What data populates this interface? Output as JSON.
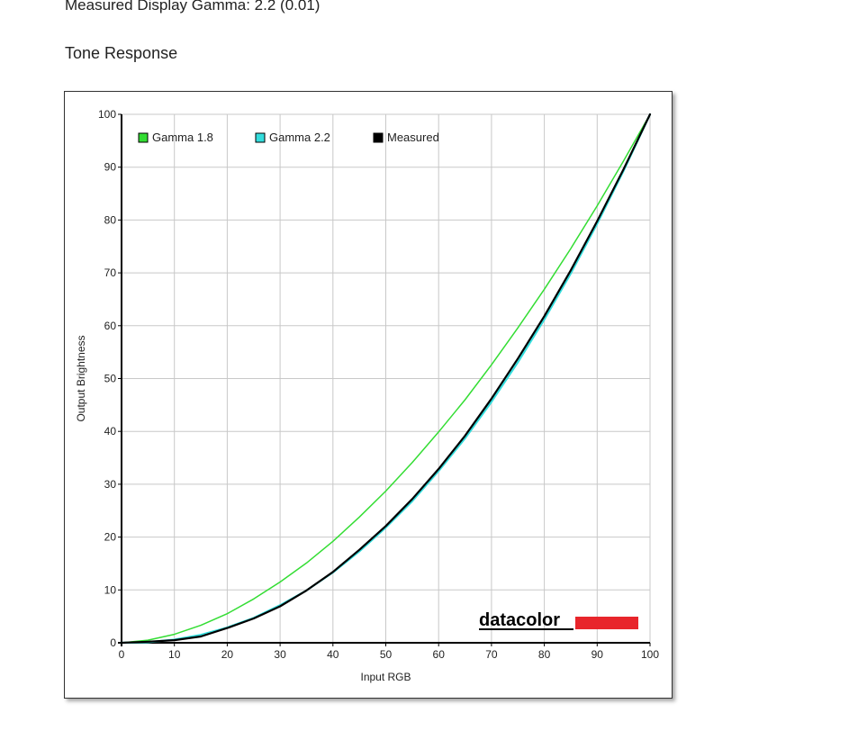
{
  "header": {
    "gamma_text": "Measured Display Gamma: 2.2 (0.01)",
    "section_title": "Tone Response"
  },
  "chart_data": {
    "type": "line",
    "xlabel": "Input RGB",
    "ylabel": "Output Brightness",
    "xlim": [
      0,
      100
    ],
    "ylim": [
      0,
      100
    ],
    "xticks": [
      0,
      10,
      20,
      30,
      40,
      50,
      60,
      70,
      80,
      90,
      100
    ],
    "yticks": [
      0,
      10,
      20,
      30,
      40,
      50,
      60,
      70,
      80,
      90,
      100
    ],
    "grid": true,
    "legend_position": "top-left",
    "series": [
      {
        "name": "Gamma 1.8",
        "color": "#33dd33",
        "x": [
          0,
          5,
          10,
          15,
          20,
          25,
          30,
          35,
          40,
          45,
          50,
          55,
          60,
          65,
          70,
          75,
          80,
          85,
          90,
          95,
          100
        ],
        "y": [
          0,
          0.5,
          1.6,
          3.3,
          5.5,
          8.3,
          11.5,
          15.1,
          19.2,
          23.8,
          28.7,
          34.1,
          39.9,
          46.0,
          52.6,
          59.6,
          66.9,
          74.6,
          82.7,
          91.2,
          100
        ]
      },
      {
        "name": "Gamma 2.2",
        "color": "#33dddd",
        "x": [
          0,
          5,
          10,
          15,
          20,
          25,
          30,
          35,
          40,
          45,
          50,
          55,
          60,
          65,
          70,
          75,
          80,
          85,
          90,
          95,
          100
        ],
        "y": [
          0,
          0.1,
          0.6,
          1.5,
          2.9,
          4.7,
          7.1,
          9.9,
          13.3,
          17.3,
          21.8,
          26.8,
          32.5,
          38.7,
          45.6,
          53.1,
          61.2,
          69.9,
          79.3,
          89.3,
          100
        ]
      },
      {
        "name": "Measured",
        "color": "#000000",
        "x": [
          0,
          5,
          10,
          15,
          20,
          25,
          30,
          35,
          40,
          45,
          50,
          55,
          60,
          65,
          70,
          75,
          80,
          85,
          90,
          95,
          100
        ],
        "y": [
          0,
          0.2,
          0.5,
          1.2,
          2.8,
          4.6,
          6.9,
          9.9,
          13.4,
          17.6,
          22.1,
          27.2,
          32.9,
          39.2,
          46.2,
          53.8,
          61.8,
          70.5,
          79.8,
          89.6,
          100
        ]
      }
    ]
  },
  "logo": {
    "text": "datacolor",
    "accent_color": "#e8252b"
  }
}
